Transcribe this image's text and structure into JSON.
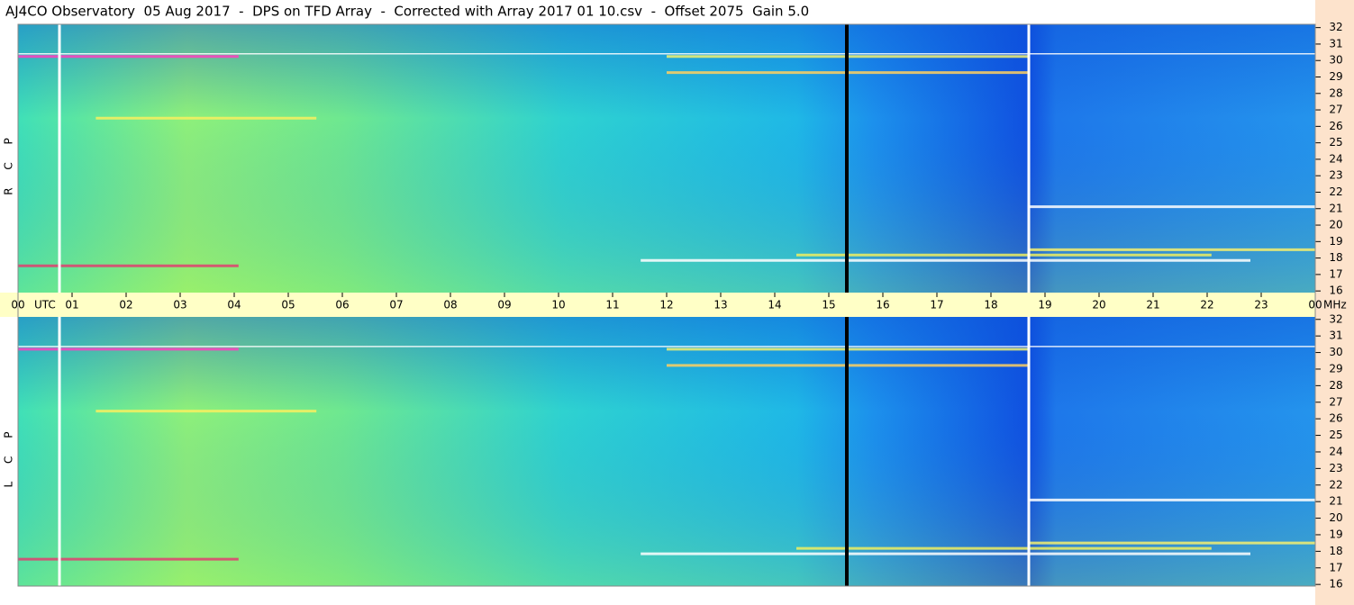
{
  "chart_data": {
    "type": "spectrogram",
    "title": "AJ4CO Observatory  05 Aug 2017  -  DPS on TFD Array  -  Corrected with Array 2017 01 10.csv  -  Offset 2075  Gain 5.0",
    "xlim": [
      0,
      24
    ],
    "xticks": [
      {
        "value": 0,
        "label": "00"
      },
      {
        "value": 1,
        "label": "01"
      },
      {
        "value": 2,
        "label": "02"
      },
      {
        "value": 3,
        "label": "03"
      },
      {
        "value": 4,
        "label": "04"
      },
      {
        "value": 5,
        "label": "05"
      },
      {
        "value": 6,
        "label": "06"
      },
      {
        "value": 7,
        "label": "07"
      },
      {
        "value": 8,
        "label": "08"
      },
      {
        "value": 9,
        "label": "09"
      },
      {
        "value": 10,
        "label": "10"
      },
      {
        "value": 11,
        "label": "11"
      },
      {
        "value": 12,
        "label": "12"
      },
      {
        "value": 13,
        "label": "13"
      },
      {
        "value": 14,
        "label": "14"
      },
      {
        "value": 15,
        "label": "15"
      },
      {
        "value": 16,
        "label": "16"
      },
      {
        "value": 17,
        "label": "17"
      },
      {
        "value": 18,
        "label": "18"
      },
      {
        "value": 19,
        "label": "19"
      },
      {
        "value": 20,
        "label": "20"
      },
      {
        "value": 21,
        "label": "21"
      },
      {
        "value": 22,
        "label": "22"
      },
      {
        "value": 23,
        "label": "23"
      },
      {
        "value": 24,
        "label": "00"
      }
    ],
    "x_unit": "UTC",
    "y_unit": "MHz",
    "panels": [
      {
        "label": "R C P",
        "ylim": [
          15.9,
          32.2
        ],
        "yticks": [
          16,
          17,
          18,
          19,
          20,
          21,
          22,
          23,
          24,
          25,
          26,
          27,
          28,
          29,
          30,
          31,
          32
        ]
      },
      {
        "label": "L C P",
        "ylim": [
          15.9,
          32.15
        ],
        "yticks": [
          16,
          17,
          18,
          19,
          20,
          21,
          22,
          23,
          24,
          25,
          26,
          27,
          28,
          29,
          30,
          31,
          32
        ]
      }
    ]
  }
}
